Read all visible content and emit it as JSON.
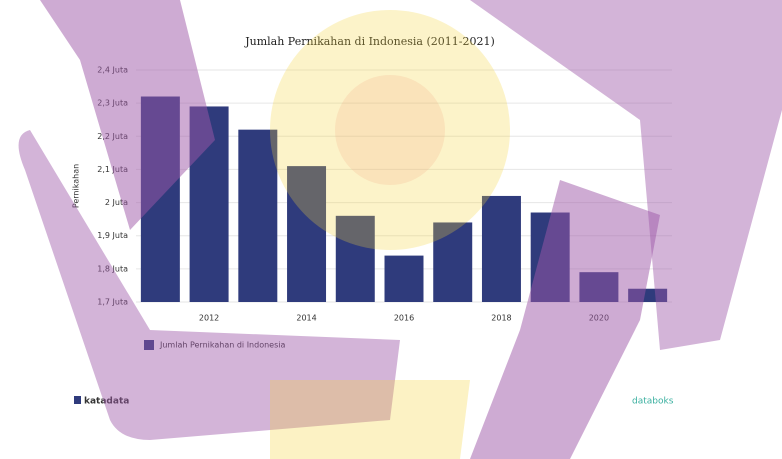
{
  "chart_data": {
    "type": "bar",
    "title": "Jumlah Pernikahan di Indonesia (2011-2021)",
    "y_label": "Pernikahan",
    "categories": [
      null,
      "2012",
      null,
      "2014",
      null,
      "2016",
      null,
      "2018",
      null,
      "2020",
      null
    ],
    "series": [
      {
        "name": "Jumlah Pernikahan di Indonesia",
        "color": "#2f3b7c",
        "values": [
          2.32,
          2.29,
          2.22,
          2.11,
          1.96,
          1.84,
          1.94,
          2.02,
          1.97,
          1.79,
          1.74
        ]
      }
    ],
    "ylim": [
      1.7,
      2.4
    ],
    "yticks": [
      {
        "value": 1.7,
        "label": "1,7 Juta"
      },
      {
        "value": 1.8,
        "label": "1,8 Juta"
      },
      {
        "value": 1.9,
        "label": "1,9 Juta"
      },
      {
        "value": 2,
        "label": "2 Juta"
      },
      {
        "value": 2.1,
        "label": "2,1 Juta"
      },
      {
        "value": 2.2,
        "label": "2,2 Juta"
      },
      {
        "value": 2.3,
        "label": "2,3 Juta"
      },
      {
        "value": 2.4,
        "label": "2,4 Juta"
      }
    ],
    "grid": true
  },
  "footer": {
    "left": "katadata",
    "right": "databoks"
  }
}
